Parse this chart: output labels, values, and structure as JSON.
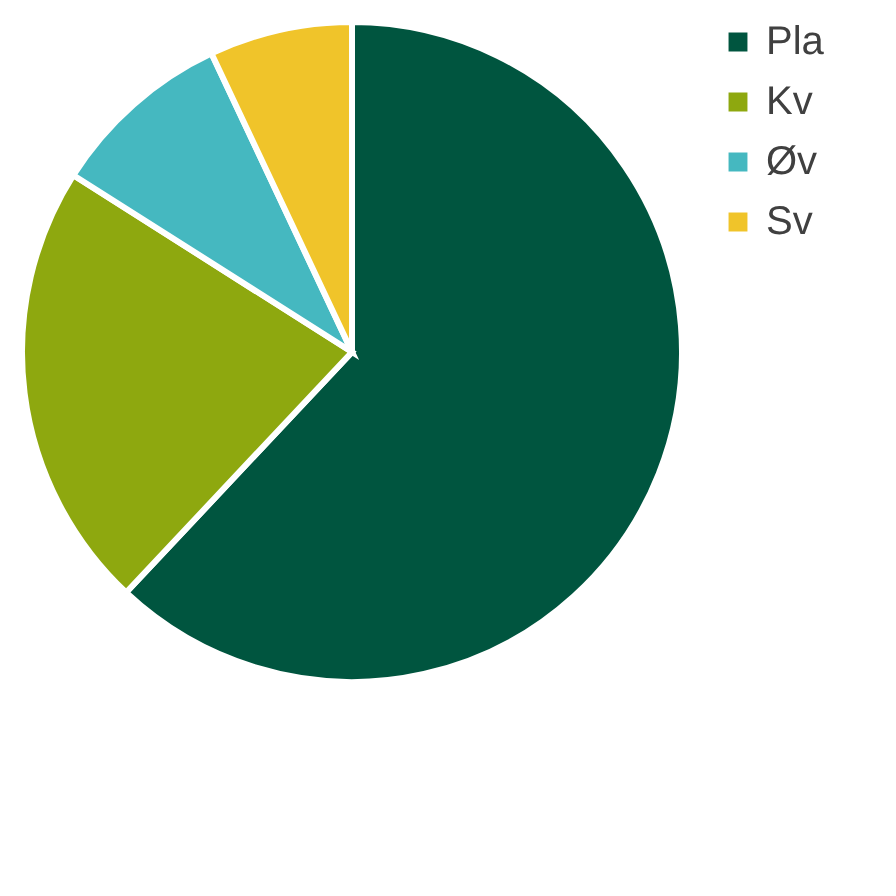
{
  "chart_data": {
    "type": "pie",
    "categories": [
      "Pla",
      "Kv",
      "Øv",
      "Sv"
    ],
    "values": [
      62,
      22,
      9,
      7
    ],
    "colors": [
      "#00553f",
      "#8ea80f",
      "#45b8c0",
      "#f0c42a"
    ],
    "legend": "right"
  }
}
